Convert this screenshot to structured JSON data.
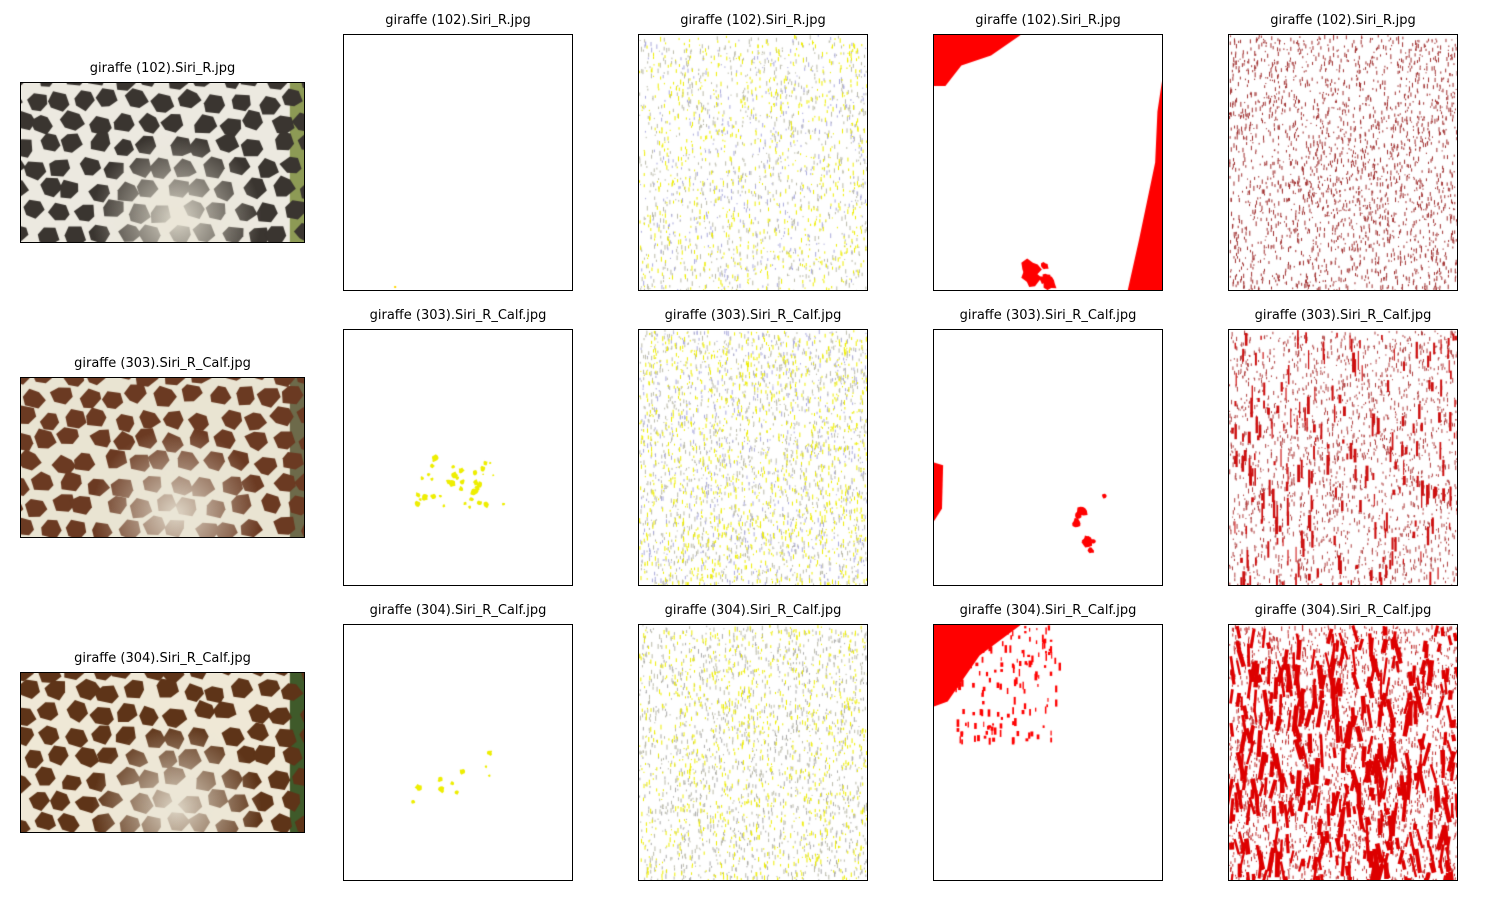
{
  "figure": {
    "rows": [
      {
        "photo": {
          "title": "giraffe (102).Siri_R.jpg",
          "palette": {
            "dark": "#3a3530",
            "light": "#ece9e0",
            "background": "#8d9a55"
          }
        },
        "masks": [
          {
            "title": "giraffe (102).Siri_R.jpg",
            "type": "empty",
            "color": "#ffd700"
          },
          {
            "title": "giraffe (102).Siri_R.jpg",
            "type": "speckle-mixed",
            "color": "#eeee00",
            "secondary_color": "#aaaadd",
            "density": 0.08
          },
          {
            "title": "giraffe (102).Siri_R.jpg",
            "type": "regions",
            "color": "#ff0000",
            "density": 0.15
          },
          {
            "title": "giraffe (102).Siri_R.jpg",
            "type": "speckle",
            "color": "#a03030",
            "density": 0.12
          }
        ]
      },
      {
        "photo": {
          "title": "giraffe (303).Siri_R_Calf.jpg",
          "palette": {
            "dark": "#6b3a22",
            "light": "#e9e4d2",
            "background": "#6d6a4a"
          }
        },
        "masks": [
          {
            "title": "giraffe (303).Siri_R_Calf.jpg",
            "type": "sparse",
            "color": "#eeee00",
            "density": 0.004
          },
          {
            "title": "giraffe (303).Siri_R_Calf.jpg",
            "type": "speckle-mixed",
            "color": "#eeee00",
            "secondary_color": "#aaaadd",
            "density": 0.12
          },
          {
            "title": "giraffe (303).Siri_R_Calf.jpg",
            "type": "regions-small",
            "color": "#ff0000",
            "density": 0.03
          },
          {
            "title": "giraffe (303).Siri_R_Calf.jpg",
            "type": "streaks",
            "color": "#cc1010",
            "density": 0.2
          }
        ]
      },
      {
        "photo": {
          "title": "giraffe (304).Siri_R_Calf.jpg",
          "palette": {
            "dark": "#5e3418",
            "light": "#efe8d6",
            "background": "#3f5a2a"
          }
        },
        "masks": [
          {
            "title": "giraffe (304).Siri_R_Calf.jpg",
            "type": "sparse",
            "color": "#eeee00",
            "density": 0.001
          },
          {
            "title": "giraffe (304).Siri_R_Calf.jpg",
            "type": "speckle-mixed",
            "color": "#eeee00",
            "secondary_color": "#aaaaaa",
            "density": 0.1
          },
          {
            "title": "giraffe (304).Siri_R_Calf.jpg",
            "type": "regions-top",
            "color": "#ff0000",
            "density": 0.1
          },
          {
            "title": "giraffe (304).Siri_R_Calf.jpg",
            "type": "streaks-dense",
            "color": "#dd0000",
            "density": 0.35
          }
        ]
      }
    ]
  }
}
